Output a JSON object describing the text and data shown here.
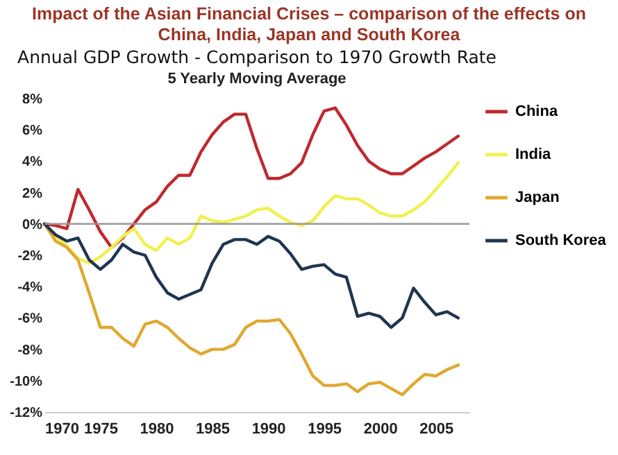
{
  "chart_data": {
    "type": "line",
    "title": "Impact of the Asian Financial Crises – comparison of the effects on China, India, Japan and South Korea",
    "subtitle": "Annual GDP Growth - Comparison to 1970 Growth Rate",
    "annotations": [
      "5 Yearly Moving Average"
    ],
    "x": [
      1970,
      1971,
      1972,
      1973,
      1974,
      1975,
      1976,
      1977,
      1978,
      1979,
      1980,
      1981,
      1982,
      1983,
      1984,
      1985,
      1986,
      1987,
      1988,
      1989,
      1990,
      1991,
      1992,
      1993,
      1994,
      1995,
      1996,
      1997,
      1998,
      1999,
      2000,
      2001,
      2002,
      2003,
      2004,
      2005,
      2006,
      2007
    ],
    "series": [
      {
        "name": "China",
        "color": "#c0282d",
        "values": [
          0,
          -0.1,
          -0.3,
          2.2,
          0.9,
          -0.5,
          -1.5,
          -0.9,
          0,
          0.9,
          1.4,
          2.4,
          3.1,
          3.1,
          4.6,
          5.7,
          6.5,
          7.0,
          7.0,
          4.8,
          2.9,
          2.9,
          3.2,
          3.9,
          5.7,
          7.2,
          7.4,
          6.3,
          5.0,
          4.0,
          3.5,
          3.2,
          3.2,
          3.7,
          4.2,
          4.6,
          5.1,
          5.6
        ]
      },
      {
        "name": "India",
        "color": "#f0f050",
        "values": [
          0,
          -0.8,
          -1.4,
          -2.2,
          -2.5,
          -2.1,
          -1.5,
          -0.8,
          -0.3,
          -1.3,
          -1.7,
          -0.9,
          -1.3,
          -0.9,
          0.5,
          0.2,
          0.1,
          0.3,
          0.5,
          0.9,
          1.0,
          0.5,
          0.1,
          -0.1,
          0.2,
          1.1,
          1.8,
          1.6,
          1.6,
          1.2,
          0.7,
          0.5,
          0.5,
          0.9,
          1.4,
          2.2,
          3.0,
          3.9
        ]
      },
      {
        "name": "Japan",
        "color": "#e0a830",
        "values": [
          0,
          -1.1,
          -1.5,
          -2.3,
          -4.4,
          -6.6,
          -6.6,
          -7.3,
          -7.8,
          -6.4,
          -6.2,
          -6.6,
          -7.3,
          -7.9,
          -8.3,
          -8.0,
          -8.0,
          -7.7,
          -6.6,
          -6.2,
          -6.2,
          -6.1,
          -7.0,
          -8.3,
          -9.7,
          -10.3,
          -10.3,
          -10.2,
          -10.7,
          -10.2,
          -10.1,
          -10.5,
          -10.9,
          -10.2,
          -9.6,
          -9.7,
          -9.3,
          -9.0
        ]
      },
      {
        "name": "South Korea",
        "color": "#1f3550",
        "values": [
          0,
          -0.7,
          -1.1,
          -0.9,
          -2.3,
          -2.9,
          -2.3,
          -1.3,
          -1.8,
          -2.0,
          -3.4,
          -4.4,
          -4.8,
          -4.5,
          -4.2,
          -2.5,
          -1.3,
          -1.0,
          -1.0,
          -1.3,
          -0.8,
          -1.1,
          -1.9,
          -2.9,
          -2.7,
          -2.6,
          -3.2,
          -3.4,
          -5.9,
          -5.7,
          -5.9,
          -6.6,
          -6.0,
          -4.1,
          -5.0,
          -5.8,
          -5.6,
          -6.0
        ]
      }
    ],
    "xlim": [
      1970,
      2008
    ],
    "xticks": [
      1970,
      1975,
      1980,
      1985,
      1990,
      1995,
      2000,
      2005
    ],
    "ylim": [
      -12,
      8
    ],
    "yticks": [
      {
        "value": 8,
        "label": "8%"
      },
      {
        "value": 6,
        "label": "6%"
      },
      {
        "value": 4,
        "label": "4%"
      },
      {
        "value": 2,
        "label": "2%"
      },
      {
        "value": 0,
        "label": "0%"
      },
      {
        "value": -2,
        "label": "-2%"
      },
      {
        "value": -4,
        "label": "-4%"
      },
      {
        "value": -6,
        "label": "-6%"
      },
      {
        "value": -8,
        "label": "-8%"
      },
      {
        "value": -10,
        "label": "-10%"
      },
      {
        "value": -12,
        "label": "-12%"
      }
    ],
    "ref_lines": [
      {
        "axis": "y",
        "value": 0,
        "color": "#999999"
      }
    ],
    "legend": "right",
    "grid": false
  }
}
